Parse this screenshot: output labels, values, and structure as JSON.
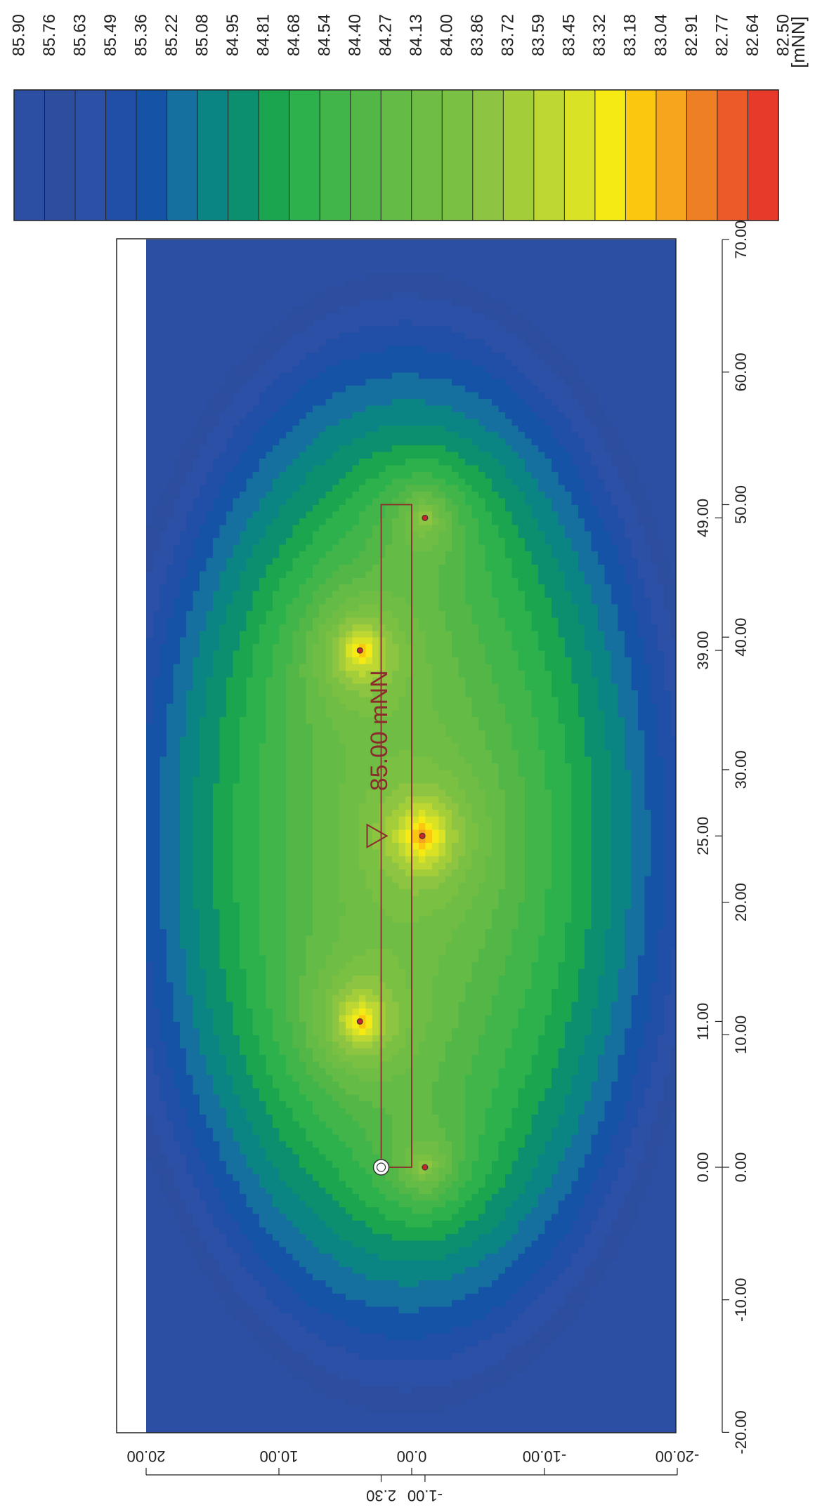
{
  "chart_data": {
    "type": "heatmap",
    "subtype": "groundwater-contour-map",
    "colorbar": {
      "unit": "[mNN]",
      "levels": [
        85.9,
        85.76,
        85.63,
        85.49,
        85.36,
        85.22,
        85.08,
        84.95,
        84.81,
        84.68,
        84.54,
        84.4,
        84.27,
        84.13,
        84.0,
        83.86,
        83.72,
        83.59,
        83.45,
        83.32,
        83.18,
        83.04,
        82.91,
        82.77,
        82.64,
        82.5
      ],
      "level_labels": [
        "85.90",
        "85.76",
        "85.63",
        "85.49",
        "85.36",
        "85.22",
        "85.08",
        "84.95",
        "84.81",
        "84.68",
        "84.54",
        "84.40",
        "84.27",
        "84.13",
        "84.00",
        "83.86",
        "83.72",
        "83.59",
        "83.45",
        "83.32",
        "83.18",
        "83.04",
        "82.91",
        "82.77",
        "82.64",
        "82.50"
      ],
      "colors": [
        "#2c4fa4",
        "#2d4d9f",
        "#2c50a6",
        "#214ea6",
        "#1553a6",
        "#1570a0",
        "#0b8484",
        "#0c8f6f",
        "#1ca54f",
        "#2cb14d",
        "#41b549",
        "#53b747",
        "#64bb45",
        "#6fbd45",
        "#79c043",
        "#8dc542",
        "#a4cd3a",
        "#bed732",
        "#d9e224",
        "#f6ea14",
        "#fbc80f",
        "#f6a51d",
        "#ef7f25",
        "#ec5a28",
        "#e73a2a"
      ],
      "orientation": "rotated",
      "placement": "top"
    },
    "x_axis": {
      "range": [
        -20,
        70
      ],
      "ticks": [
        -20,
        -10,
        0,
        10,
        20,
        30,
        40,
        50,
        60,
        70
      ],
      "tick_labels": [
        "-20.00",
        "-10.00",
        "0.00",
        "10.00",
        "20.00",
        "30.00",
        "40.00",
        "50.00",
        "60.00",
        "70.00"
      ],
      "marker_ticks": [
        0,
        11,
        25,
        39,
        49
      ],
      "marker_labels": [
        "0.00",
        "11.00",
        "25.00",
        "39.00",
        "49.00"
      ]
    },
    "y_axis": {
      "range": [
        -20,
        20
      ],
      "ticks": [
        -20,
        -10,
        0,
        10,
        20
      ],
      "tick_labels": [
        "-20.00",
        "-10.00",
        "0.00",
        "10.00",
        "20.00"
      ],
      "marker_ticks": [
        -1,
        2.3
      ],
      "marker_labels": [
        "-1.00",
        "2.30"
      ]
    },
    "wells": [
      {
        "x": 0,
        "y": -1,
        "min_level": 83.45
      },
      {
        "x": 11,
        "y": 3.9,
        "min_level": 82.5
      },
      {
        "x": 25,
        "y": -0.8,
        "min_level": 82.5
      },
      {
        "x": 39,
        "y": 3.9,
        "min_level": 82.5
      },
      {
        "x": 49,
        "y": -1,
        "min_level": 83.45
      }
    ],
    "excavation": {
      "x": [
        0,
        50
      ],
      "y": [
        0,
        2.3
      ]
    },
    "origin_marker": {
      "x": 0,
      "y": 2.3
    },
    "annotation": {
      "text": "85.00 mNN",
      "x": 25,
      "y": 2.0
    }
  }
}
